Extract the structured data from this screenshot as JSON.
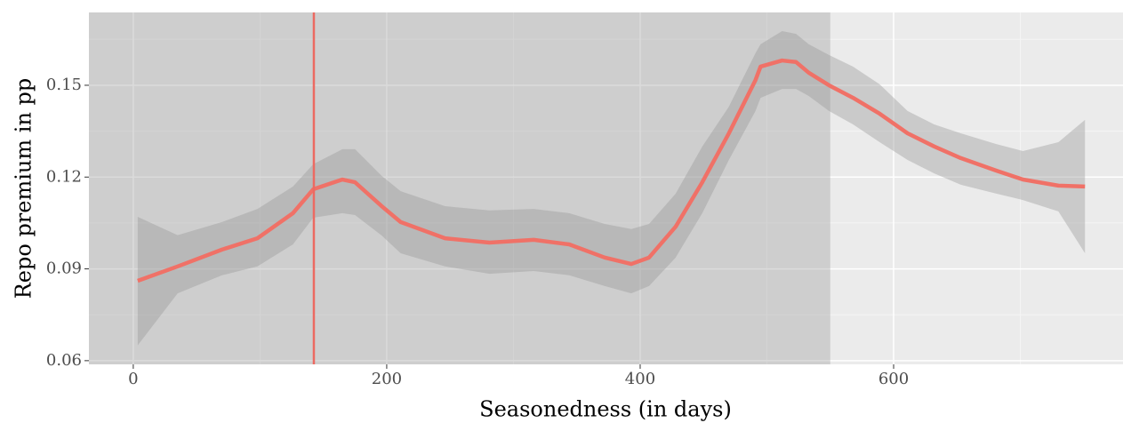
{
  "chart_data": {
    "type": "line",
    "x_label": "Seasonedness (in days)",
    "y_label": "Repo premium in pp",
    "xlim": [
      -35,
      781
    ],
    "ylim": [
      0.0588,
      0.1738
    ],
    "xticks": [
      0,
      200,
      400,
      600
    ],
    "yticks": [
      0.06,
      0.09,
      0.12,
      0.15
    ],
    "xminorticks": [
      100,
      300,
      500,
      700
    ],
    "yminorticks": [
      0.075,
      0.105,
      0.135,
      0.165
    ],
    "grid": true,
    "shaded_region_end": 550,
    "vline": 142.5,
    "vline_color": "#ec6a62",
    "band_color": "#999999",
    "x": [
      3.5,
      35,
      70,
      98,
      126,
      142,
      165,
      175,
      196,
      211,
      246,
      281,
      316,
      344,
      372,
      393,
      407,
      428,
      449,
      470,
      491,
      495,
      512,
      523,
      533,
      549,
      568,
      589,
      611,
      632,
      653,
      681,
      702,
      730,
      751
    ],
    "series": [
      {
        "color": "#f07167",
        "values": [
          0.0861,
          0.0908,
          0.0963,
          0.1,
          0.1082,
          0.116,
          0.1192,
          0.1183,
          0.1105,
          0.1053,
          0.1,
          0.0986,
          0.0995,
          0.098,
          0.0937,
          0.0916,
          0.0937,
          0.1038,
          0.1183,
          0.1343,
          0.1517,
          0.1561,
          0.1581,
          0.1576,
          0.1541,
          0.15,
          0.1459,
          0.1407,
          0.1343,
          0.13,
          0.1262,
          0.1221,
          0.1192,
          0.1172,
          0.1169
        ],
        "upper": [
          0.107,
          0.101,
          0.1053,
          0.1096,
          0.1169,
          0.1242,
          0.1291,
          0.1291,
          0.1204,
          0.1154,
          0.1105,
          0.1091,
          0.1096,
          0.1082,
          0.1047,
          0.103,
          0.1047,
          0.1146,
          0.13,
          0.143,
          0.1605,
          0.1634,
          0.1677,
          0.1668,
          0.1634,
          0.1599,
          0.1561,
          0.1503,
          0.1416,
          0.1372,
          0.1343,
          0.1308,
          0.1285,
          0.1314,
          0.1387
        ],
        "lower": [
          0.065,
          0.082,
          0.0879,
          0.0908,
          0.098,
          0.1067,
          0.1082,
          0.1076,
          0.1009,
          0.0951,
          0.0908,
          0.0884,
          0.0893,
          0.0879,
          0.0844,
          0.082,
          0.0844,
          0.0937,
          0.1082,
          0.1256,
          0.1416,
          0.1459,
          0.1488,
          0.1488,
          0.1465,
          0.1416,
          0.1372,
          0.1314,
          0.1256,
          0.1212,
          0.1175,
          0.1146,
          0.1125,
          0.1088,
          0.0951
        ]
      }
    ]
  }
}
